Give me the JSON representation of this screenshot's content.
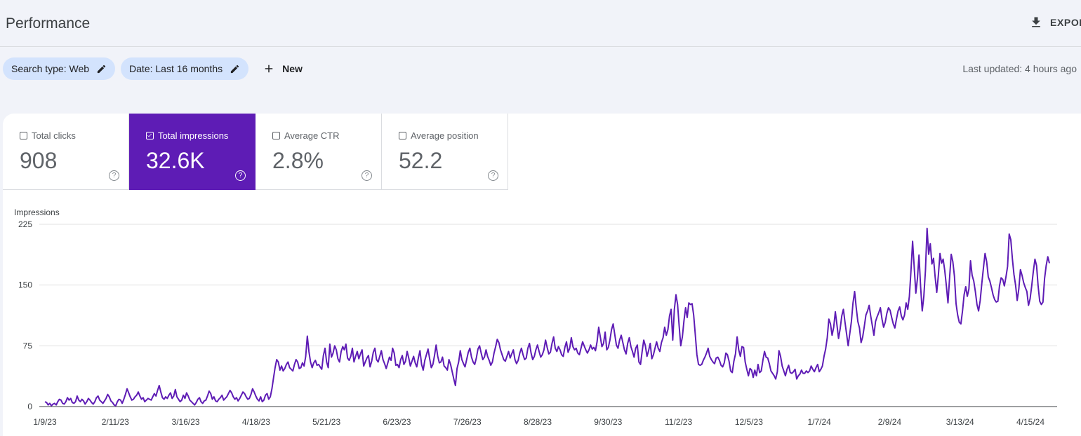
{
  "header": {
    "title": "Performance",
    "export_label": "EXPOR",
    "export_icon": "download-icon"
  },
  "filters": [
    {
      "label": "Search type: Web",
      "icon": "edit-icon"
    },
    {
      "label": "Date: Last 16 months",
      "icon": "edit-icon"
    }
  ],
  "new_button": {
    "label": "New",
    "icon": "plus-icon"
  },
  "last_updated": "Last updated: 4 hours ago",
  "metrics": [
    {
      "label": "Total clicks",
      "value": "908",
      "checked": false
    },
    {
      "label": "Total impressions",
      "value": "32.6K",
      "checked": true
    },
    {
      "label": "Average CTR",
      "value": "2.8%",
      "checked": false
    },
    {
      "label": "Average position",
      "value": "52.2",
      "checked": false
    }
  ],
  "colors": {
    "accent": "#5e1cb5",
    "chip": "#d3e3fd",
    "line": "#5e1cb5",
    "background": "#f1f3f9"
  },
  "chart_data": {
    "type": "line",
    "ylabel": "Impressions",
    "ylim": [
      0,
      225
    ],
    "yticks": [
      0,
      75,
      150,
      225
    ],
    "grid": true,
    "x_tick_labels": [
      "1/9/23",
      "2/11/23",
      "3/16/23",
      "4/18/23",
      "5/21/23",
      "6/23/23",
      "7/26/23",
      "8/28/23",
      "9/30/23",
      "11/2/23",
      "12/5/23",
      "1/7/24",
      "2/9/24",
      "3/13/24",
      "4/15/24"
    ],
    "series": [
      {
        "values": [
          6,
          5,
          2,
          4,
          1,
          3,
          4,
          2,
          6,
          9,
          8,
          4,
          3,
          6,
          11,
          8,
          10,
          5,
          4,
          6,
          13,
          8,
          6,
          9,
          7,
          3,
          6,
          10,
          8,
          5,
          3,
          6,
          11,
          13,
          8,
          6,
          4,
          7,
          10,
          15,
          12,
          7,
          5,
          2,
          1,
          6,
          9,
          8,
          4,
          9,
          15,
          22,
          17,
          12,
          8,
          9,
          12,
          14,
          18,
          13,
          9,
          11,
          6,
          8,
          10,
          9,
          8,
          12,
          16,
          13,
          20,
          26,
          18,
          11,
          9,
          12,
          10,
          14,
          17,
          10,
          13,
          21,
          12,
          9,
          6,
          8,
          14,
          10,
          17,
          13,
          8,
          6,
          4,
          2,
          5,
          9,
          11,
          6,
          4,
          7,
          8,
          13,
          19,
          16,
          9,
          12,
          7,
          6,
          9,
          11,
          14,
          8,
          10,
          12,
          16,
          20,
          17,
          12,
          9,
          11,
          7,
          10,
          14,
          18,
          16,
          12,
          9,
          10,
          15,
          22,
          18,
          13,
          9,
          7,
          12,
          6,
          8,
          14,
          16,
          9,
          12,
          22,
          35,
          48,
          58,
          55,
          45,
          50,
          44,
          47,
          52,
          55,
          48,
          46,
          44,
          52,
          58,
          55,
          47,
          48,
          54,
          50,
          62,
          87,
          68,
          55,
          48,
          54,
          57,
          51,
          52,
          49,
          46,
          63,
          72,
          55,
          48,
          77,
          61,
          66,
          75,
          70,
          59,
          55,
          68,
          74,
          70,
          77,
          60,
          57,
          62,
          72,
          55,
          62,
          68,
          59,
          65,
          70,
          50,
          55,
          60,
          63,
          49,
          56,
          67,
          72,
          58,
          55,
          62,
          69,
          58,
          53,
          47,
          54,
          61,
          57,
          72,
          66,
          51,
          52,
          48,
          58,
          63,
          52,
          56,
          68,
          60,
          50,
          56,
          62,
          54,
          49,
          60,
          69,
          52,
          45,
          57,
          64,
          71,
          59,
          48,
          52,
          63,
          76,
          62,
          54,
          55,
          61,
          50,
          48,
          45,
          58,
          52,
          43,
          34,
          26,
          47,
          55,
          69,
          58,
          53,
          49,
          58,
          67,
          72,
          61,
          55,
          52,
          60,
          71,
          75,
          66,
          58,
          61,
          70,
          62,
          57,
          51,
          55,
          66,
          74,
          83,
          79,
          70,
          64,
          58,
          56,
          62,
          68,
          60,
          65,
          70,
          58,
          53,
          57,
          66,
          72,
          64,
          58,
          60,
          72,
          78,
          66,
          58,
          62,
          70,
          76,
          68,
          61,
          64,
          70,
          82,
          73,
          65,
          67,
          78,
          86,
          72,
          68,
          74,
          70,
          64,
          62,
          73,
          80,
          67,
          72,
          85,
          74,
          70,
          72,
          66,
          64,
          72,
          80,
          75,
          70,
          66,
          70,
          76,
          71,
          73,
          69,
          80,
          98,
          86,
          74,
          78,
          92,
          70,
          73,
          82,
          95,
          102,
          89,
          76,
          72,
          82,
          88,
          79,
          70,
          65,
          78,
          85,
          74,
          68,
          61,
          72,
          76,
          55,
          52,
          68,
          82,
          75,
          62,
          69,
          78,
          59,
          64,
          72,
          80,
          72,
          68,
          79,
          85,
          98,
          88,
          95,
          112,
          120,
          82,
          120,
          138,
          126,
          100,
          75,
          86,
          106,
          122,
          110,
          128,
          126,
          127,
          113,
          89,
          64,
          52,
          51,
          52,
          57,
          61,
          66,
          72,
          62,
          58,
          55,
          53,
          60,
          61,
          57,
          51,
          49,
          54,
          66,
          64,
          56,
          44,
          42,
          56,
          65,
          86,
          70,
          62,
          74,
          73,
          55,
          46,
          38,
          47,
          45,
          36,
          45,
          38,
          52,
          42,
          44,
          57,
          68,
          61,
          60,
          53,
          44,
          41,
          38,
          34,
          43,
          69,
          62,
          50,
          44,
          38,
          46,
          51,
          42,
          41,
          43,
          46,
          34,
          38,
          40,
          45,
          41,
          41,
          44,
          42,
          44,
          50,
          46,
          43,
          48,
          52,
          43,
          46,
          50,
          62,
          71,
          85,
          108,
          102,
          88,
          98,
          117,
          101,
          84,
          96,
          112,
          120,
          104,
          90,
          75,
          90,
          105,
          128,
          142,
          122,
          105,
          97,
          79,
          86,
          99,
          113,
          118,
          125,
          112,
          100,
          88,
          105,
          111,
          116,
          122,
          108,
          98,
          104,
          115,
          122,
          119,
          110,
          102,
          97,
          108,
          118,
          123,
          112,
          107,
          113,
          128,
          120,
          136,
          168,
          204,
          172,
          140,
          158,
          187,
          148,
          118,
          136,
          168,
          220,
          188,
          201,
          176,
          183,
          160,
          141,
          162,
          189,
          177,
          182,
          168,
          149,
          128,
          159,
          188,
          179,
          161,
          127,
          113,
          104,
          102,
          118,
          138,
          148,
          136,
          145,
          180,
          162,
          155,
          142,
          126,
          118,
          131,
          152,
          171,
          189,
          179,
          160,
          155,
          147,
          138,
          132,
          129,
          130,
          149,
          159,
          157,
          149,
          160,
          173,
          213,
          206,
          182,
          163,
          150,
          131,
          145,
          169,
          162,
          153,
          147,
          142,
          125,
          133,
          149,
          167,
          182,
          174,
          149,
          130,
          126,
          129,
          158,
          174,
          185,
          177
        ]
      }
    ]
  }
}
